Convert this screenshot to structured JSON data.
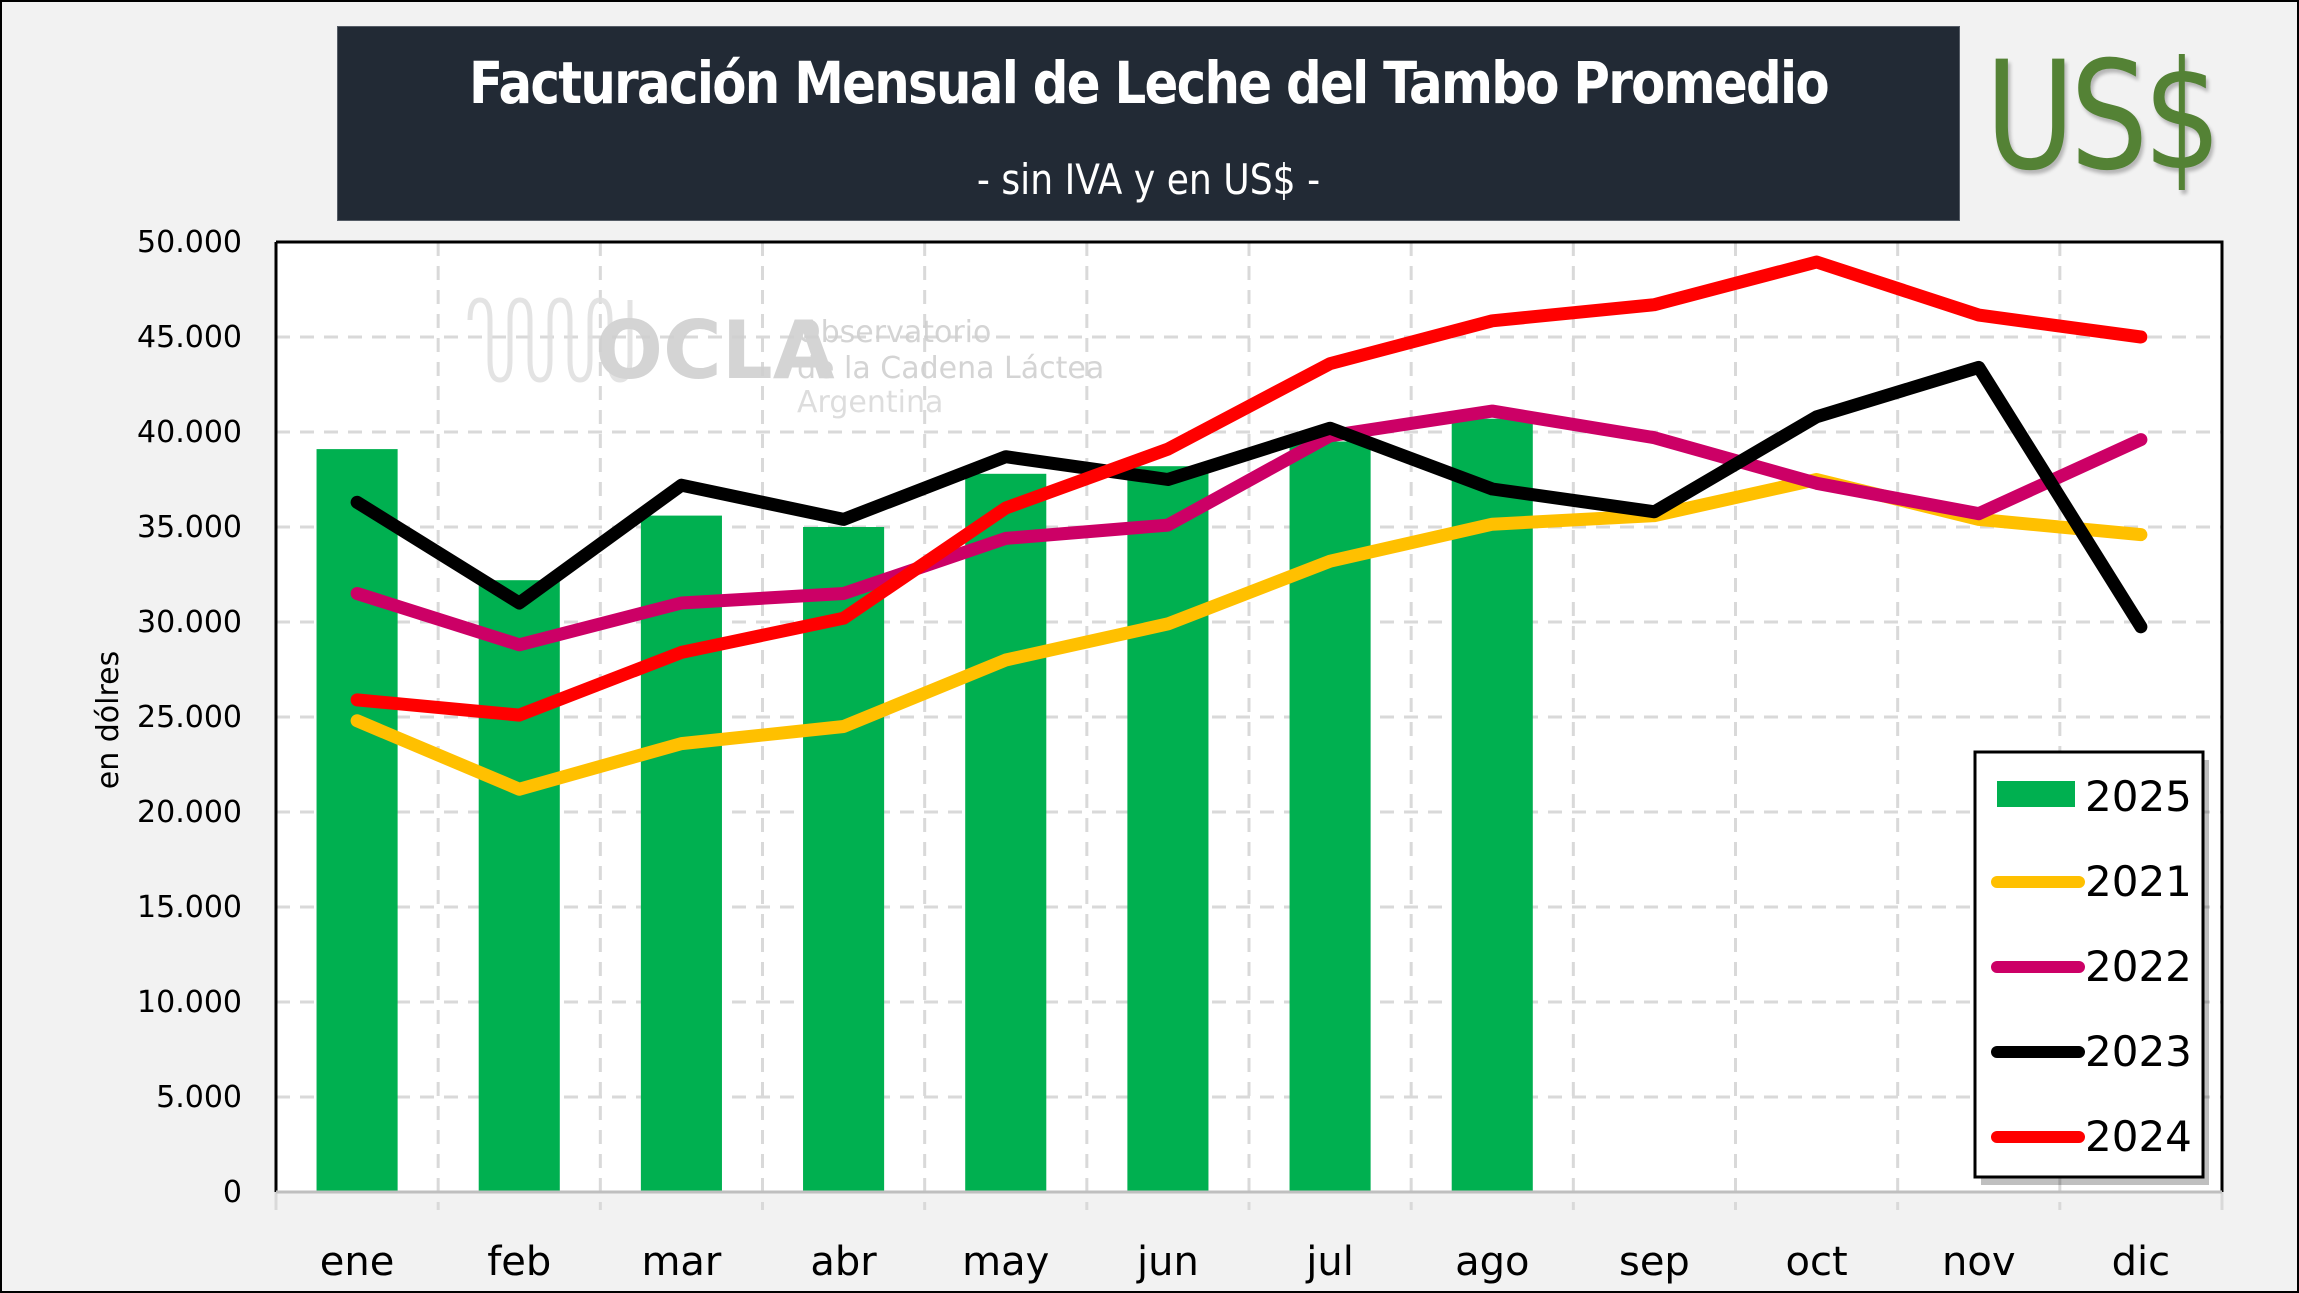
{
  "header": {
    "title": "Facturación Mensual de Leche del Tambo Promedio",
    "subtitle": "- sin IVA y en US$ -",
    "currency_badge": "US$"
  },
  "watermark": {
    "logo_text": "OCLA",
    "line1": "Observatorio",
    "line2": "de la Cadena Láctea",
    "line3": "Argentina"
  },
  "chart_data": {
    "type": "bar+line",
    "title": "Facturación Mensual de Leche del Tambo Promedio",
    "subtitle": "- sin IVA y en US$ -",
    "xlabel": "",
    "ylabel": "en dólres",
    "ylim": [
      0,
      50000
    ],
    "yticks": [
      0,
      5000,
      10000,
      15000,
      20000,
      25000,
      30000,
      35000,
      40000,
      45000,
      50000
    ],
    "ytick_labels": [
      "0",
      "5.000",
      "10.000",
      "15.000",
      "20.000",
      "25.000",
      "30.000",
      "35.000",
      "40.000",
      "45.000",
      "50.000"
    ],
    "grid": true,
    "legend_position": "bottom-right",
    "categories": [
      "ene",
      "feb",
      "mar",
      "abr",
      "may",
      "jun",
      "jul",
      "ago",
      "sep",
      "oct",
      "nov",
      "dic"
    ],
    "series": [
      {
        "name": "2025",
        "type": "bar",
        "color": "#00b050",
        "values": [
          39100,
          32200,
          35600,
          35000,
          37800,
          38200,
          39500,
          40700,
          null,
          null,
          null,
          null
        ]
      },
      {
        "name": "2021",
        "type": "line",
        "color": "#ffc000",
        "values": [
          24800,
          21200,
          23600,
          24500,
          28000,
          29900,
          33200,
          35150,
          35600,
          37500,
          35400,
          34600
        ]
      },
      {
        "name": "2022",
        "type": "line",
        "color": "#cc0066",
        "values": [
          31500,
          28800,
          31000,
          31500,
          34400,
          35100,
          39800,
          41100,
          39700,
          37300,
          35700,
          39600
        ]
      },
      {
        "name": "2023",
        "type": "line",
        "color": "#000000",
        "values": [
          36300,
          31000,
          37200,
          35400,
          38700,
          37500,
          40200,
          37000,
          35800,
          40800,
          43400,
          29750
        ]
      },
      {
        "name": "2024",
        "type": "line",
        "color": "#ff0000",
        "values": [
          25900,
          25100,
          28400,
          30200,
          36000,
          39100,
          43600,
          45850,
          46700,
          48950,
          46150,
          45000
        ]
      }
    ]
  }
}
